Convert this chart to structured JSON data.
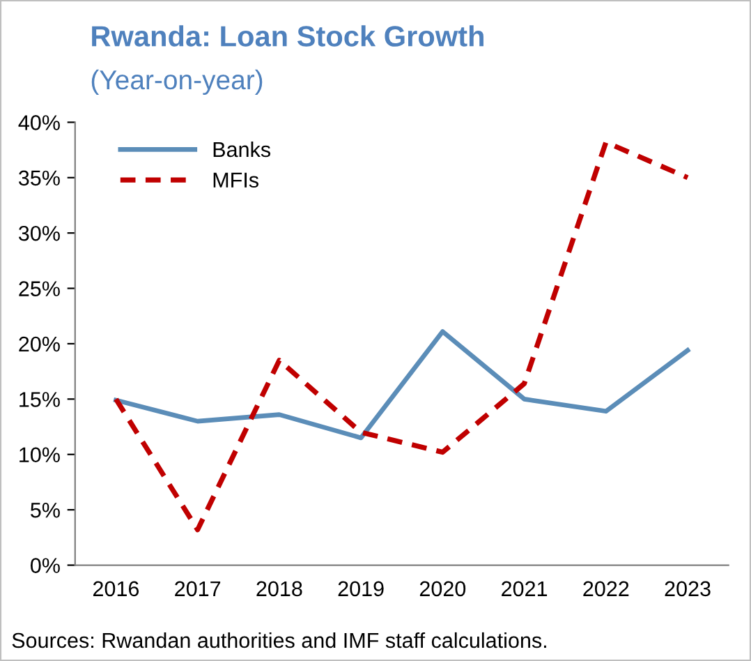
{
  "chart_data": {
    "type": "line",
    "title": "Rwanda: Loan Stock Growth",
    "subtitle": "(Year-on-year)",
    "categories": [
      "2016",
      "2017",
      "2018",
      "2019",
      "2020",
      "2021",
      "2022",
      "2023"
    ],
    "series": [
      {
        "name": "Banks",
        "color": "#5b8db8",
        "line_style": "solid",
        "values": [
          14.9,
          13.0,
          13.6,
          11.5,
          21.1,
          15.0,
          13.9,
          19.4
        ]
      },
      {
        "name": "MFIs",
        "color": "#c00000",
        "line_style": "dashed",
        "values": [
          15.0,
          3.2,
          18.5,
          12.0,
          10.2,
          16.4,
          38.2,
          35.0
        ]
      }
    ],
    "ylim": [
      0,
      40
    ],
    "yticks": [
      {
        "value": 0,
        "label": "0%"
      },
      {
        "value": 5,
        "label": "5%"
      },
      {
        "value": 10,
        "label": "10%"
      },
      {
        "value": 15,
        "label": "15%"
      },
      {
        "value": 20,
        "label": "20%"
      },
      {
        "value": 25,
        "label": "25%"
      },
      {
        "value": 30,
        "label": "30%"
      },
      {
        "value": 35,
        "label": "35%"
      },
      {
        "value": 40,
        "label": "40%"
      }
    ],
    "grid": false,
    "legend": "top left",
    "marker": "none",
    "annotations": [
      "Sources: Rwandan authorities and IMF staff calculations."
    ]
  }
}
